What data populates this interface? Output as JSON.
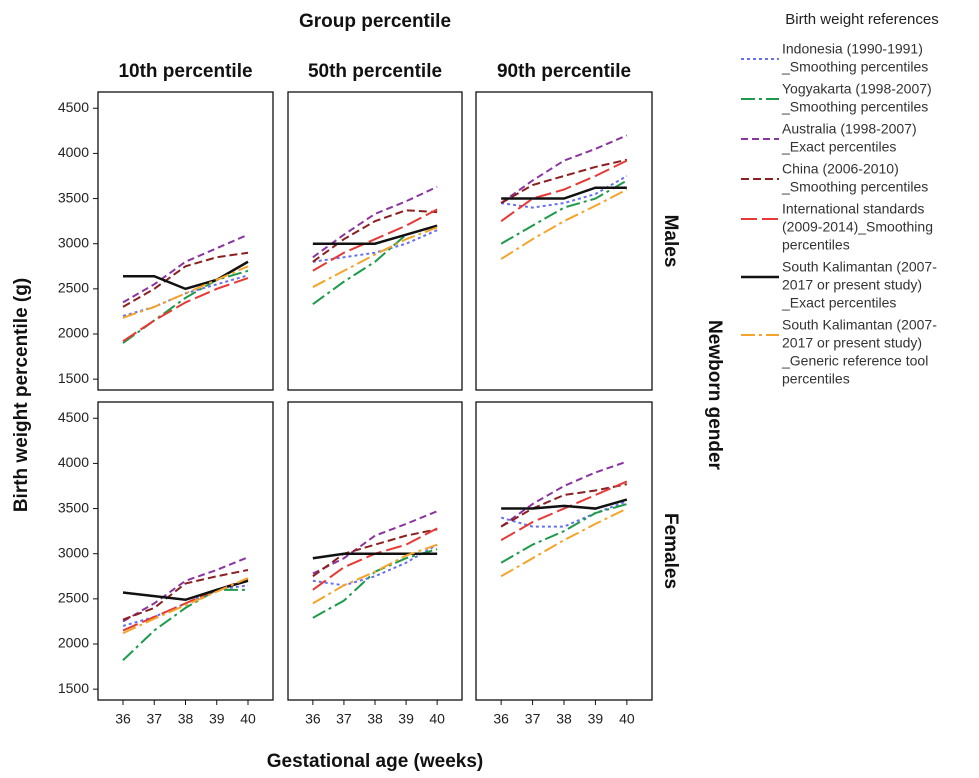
{
  "figure": {
    "column_title": "Group percentile",
    "columns": [
      "10th percentile",
      "50th percentile",
      "90th percentile"
    ],
    "row_title": "Newborn gender",
    "rows": [
      "Males",
      "Females"
    ],
    "y_label": "Birth weight percentile (g)",
    "x_label": "Gestational age (weeks)",
    "legend_title": "Birth weight references",
    "series": [
      {
        "name_lines": [
          "Indonesia (1990-1991)",
          "_Smoothing percentiles"
        ],
        "color": "#6670f0",
        "dash": "3,3"
      },
      {
        "name_lines": [
          "Yogyakarta (1998-2007)",
          "_Smoothing percentiles"
        ],
        "color": "#1f9a4a",
        "dash": "14,4,3,4"
      },
      {
        "name_lines": [
          "Australia (1998-2007)",
          "_Exact percentiles"
        ],
        "color": "#8a35a0",
        "dash": "7,4"
      },
      {
        "name_lines": [
          "China (2006-2010)",
          "_Smoothing percentiles"
        ],
        "color": "#8b2020",
        "dash": "8,4"
      },
      {
        "name_lines": [
          "International standards",
          "(2009-2014)_Smoothing",
          "percentiles"
        ],
        "color": "#e53a36",
        "dash": "16,5"
      },
      {
        "name_lines": [
          "South Kalimantan (2007-",
          "2017 or present study)",
          "_Exact percentiles"
        ],
        "color": "#111111",
        "dash": "none"
      },
      {
        "name_lines": [
          "South Kalimantan (2007-",
          "2017 or present study)",
          "_Generic reference tool",
          "percentiles"
        ],
        "color": "#f4a42a",
        "dash": "14,4,3,4"
      }
    ]
  },
  "axes": {
    "x": [
      36,
      37,
      38,
      39,
      40
    ],
    "xlim": [
      35.2,
      40.8
    ],
    "xticks": [
      36,
      37,
      38,
      39,
      40
    ],
    "ylim": [
      1380,
      4680
    ],
    "yticks": [
      1500,
      2000,
      2500,
      3000,
      3500,
      4000,
      4500
    ]
  },
  "chart_data": [
    {
      "type": "line",
      "series": [
        {
          "values": [
            2200,
            2300,
            2450,
            2550,
            2650
          ]
        },
        {
          "values": [
            1900,
            2150,
            2400,
            2600,
            2700
          ]
        },
        {
          "values": [
            2350,
            2550,
            2800,
            2950,
            3100
          ]
        },
        {
          "values": [
            2300,
            2500,
            2750,
            2850,
            2900
          ]
        },
        {
          "values": [
            1920,
            2150,
            2350,
            2500,
            2620
          ]
        },
        {
          "values": [
            2640,
            2640,
            2500,
            2600,
            2800
          ]
        },
        {
          "values": [
            2180,
            2300,
            2450,
            2600,
            2750
          ]
        }
      ]
    },
    {
      "type": "line",
      "series": [
        {
          "values": [
            2800,
            2850,
            2900,
            3000,
            3150
          ]
        },
        {
          "values": [
            2330,
            2580,
            2800,
            3100,
            3200
          ]
        },
        {
          "values": [
            2850,
            3100,
            3330,
            3470,
            3630
          ]
        },
        {
          "values": [
            2800,
            3050,
            3250,
            3370,
            3350
          ]
        },
        {
          "values": [
            2700,
            2900,
            3050,
            3200,
            3380
          ]
        },
        {
          "values": [
            3000,
            3000,
            3000,
            3100,
            3200
          ]
        },
        {
          "values": [
            2520,
            2700,
            2880,
            3050,
            3180
          ]
        }
      ]
    },
    {
      "type": "line",
      "series": [
        {
          "values": [
            3450,
            3400,
            3450,
            3550,
            3750
          ]
        },
        {
          "values": [
            3000,
            3200,
            3400,
            3500,
            3700
          ]
        },
        {
          "values": [
            3450,
            3700,
            3920,
            4050,
            4200
          ]
        },
        {
          "values": [
            3450,
            3650,
            3750,
            3850,
            3930
          ]
        },
        {
          "values": [
            3250,
            3500,
            3600,
            3750,
            3920
          ]
        },
        {
          "values": [
            3500,
            3500,
            3500,
            3620,
            3620
          ]
        },
        {
          "values": [
            2830,
            3050,
            3250,
            3420,
            3600
          ]
        }
      ]
    },
    {
      "type": "line",
      "series": [
        {
          "values": [
            2200,
            2300,
            2450,
            2600,
            2650
          ]
        },
        {
          "values": [
            1820,
            2150,
            2400,
            2600,
            2600
          ]
        },
        {
          "values": [
            2250,
            2450,
            2700,
            2820,
            2960
          ]
        },
        {
          "values": [
            2270,
            2400,
            2670,
            2750,
            2820
          ]
        },
        {
          "values": [
            2150,
            2300,
            2450,
            2600,
            2720
          ]
        },
        {
          "values": [
            2570,
            2530,
            2490,
            2600,
            2700
          ]
        },
        {
          "values": [
            2120,
            2280,
            2430,
            2580,
            2730
          ]
        }
      ]
    },
    {
      "type": "line",
      "series": [
        {
          "values": [
            2700,
            2650,
            2750,
            2900,
            3100
          ]
        },
        {
          "values": [
            2290,
            2480,
            2800,
            2950,
            3050
          ]
        },
        {
          "values": [
            2780,
            2950,
            3200,
            3330,
            3470
          ]
        },
        {
          "values": [
            2750,
            3000,
            3100,
            3200,
            3270
          ]
        },
        {
          "values": [
            2600,
            2850,
            3000,
            3100,
            3280
          ]
        },
        {
          "values": [
            2950,
            3000,
            3000,
            3000,
            3000
          ]
        },
        {
          "values": [
            2450,
            2650,
            2800,
            2980,
            3100
          ]
        }
      ]
    },
    {
      "type": "line",
      "series": [
        {
          "values": [
            3400,
            3300,
            3300,
            3450,
            3580
          ]
        },
        {
          "values": [
            2900,
            3100,
            3250,
            3450,
            3550
          ]
        },
        {
          "values": [
            3300,
            3550,
            3750,
            3900,
            4020
          ]
        },
        {
          "values": [
            3300,
            3500,
            3650,
            3700,
            3770
          ]
        },
        {
          "values": [
            3150,
            3350,
            3500,
            3650,
            3800
          ]
        },
        {
          "values": [
            3500,
            3500,
            3530,
            3500,
            3600
          ]
        },
        {
          "values": [
            2750,
            2950,
            3150,
            3330,
            3500
          ]
        }
      ]
    }
  ]
}
